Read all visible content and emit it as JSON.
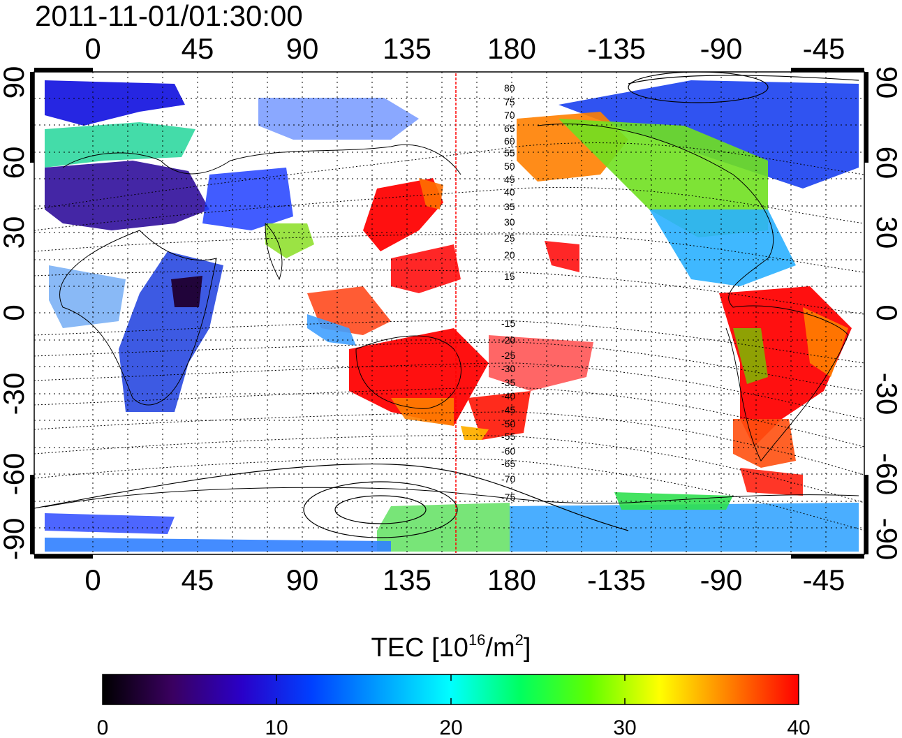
{
  "title": "2011-11-01/01:30:00",
  "map": {
    "top_ticks": [
      "0",
      "45",
      "90",
      "135",
      "180",
      "-135",
      "-90",
      "-45"
    ],
    "bottom_ticks": [
      "0",
      "45",
      "90",
      "135",
      "180",
      "-135",
      "-90",
      "-45"
    ],
    "left_ticks": [
      "90",
      "60",
      "30",
      "0",
      "-30",
      "-60",
      "-90"
    ],
    "right_ticks": [
      "90",
      "60",
      "30",
      "0",
      "-30",
      "-60",
      "-90"
    ],
    "contour_labels": [
      "80",
      "75",
      "70",
      "65",
      "60",
      "55",
      "50",
      "45",
      "40",
      "35",
      "30",
      "25",
      "20",
      "15",
      "-15",
      "-20",
      "-25",
      "-30",
      "-35",
      "-40",
      "-45",
      "-50",
      "-55",
      "-60",
      "-65",
      "-70",
      "-75"
    ],
    "terminator_color": "#ff0000"
  },
  "colorbar": {
    "title_prefix": "TEC  [10",
    "exp1": "16",
    "title_mid": "/m",
    "exp2": "2",
    "title_suffix": "]",
    "tick_labels": [
      "0",
      "10",
      "20",
      "30",
      "40"
    ],
    "colors": [
      "#000000",
      "#3a0060",
      "#2a00c8",
      "#0040ff",
      "#00a0ff",
      "#00ffff",
      "#00ff60",
      "#60ff00",
      "#ffff00",
      "#ff8000",
      "#ff0000"
    ]
  }
}
